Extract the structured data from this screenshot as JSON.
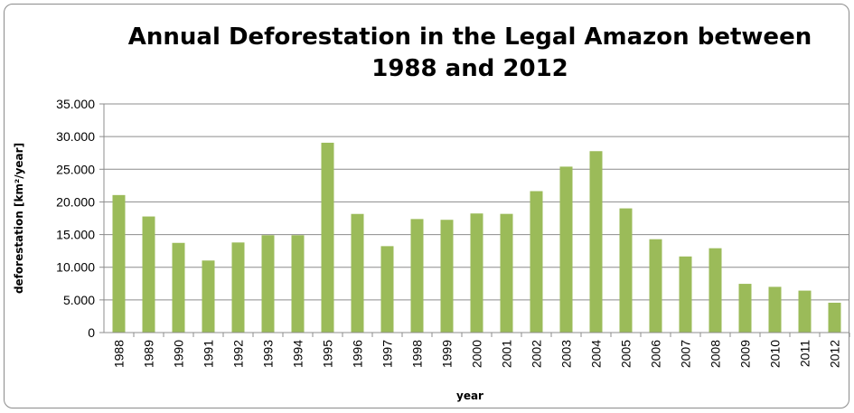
{
  "chart_data": {
    "type": "bar",
    "title": "Annual Deforestation in the Legal Amazon between 1988 and 2012",
    "title_line1": "Annual Deforestation in the Legal Amazon between",
    "title_line2": "1988 and 2012",
    "xlabel": "year",
    "ylabel": "deforestation  [km²/year]",
    "categories": [
      "1988",
      "1989",
      "1990",
      "1991",
      "1992",
      "1993",
      "1994",
      "1995",
      "1996",
      "1997",
      "1998",
      "1999",
      "2000",
      "2001",
      "2002",
      "2003",
      "2004",
      "2005",
      "2006",
      "2007",
      "2008",
      "2009",
      "2010",
      "2011",
      "2012"
    ],
    "values": [
      21050,
      17770,
      13730,
      11030,
      13790,
      14900,
      14900,
      29060,
      18160,
      13230,
      17380,
      17260,
      18230,
      18170,
      21650,
      25400,
      27770,
      19010,
      14290,
      11650,
      12910,
      7460,
      7000,
      6420,
      4570
    ],
    "ylim": [
      0,
      35000
    ],
    "yticks": [
      "0",
      "5.000",
      "10.000",
      "15.000",
      "20.000",
      "25.000",
      "30.000",
      "35.000"
    ],
    "grid": true,
    "legend": "none",
    "bar_color": "#9bbb59"
  }
}
